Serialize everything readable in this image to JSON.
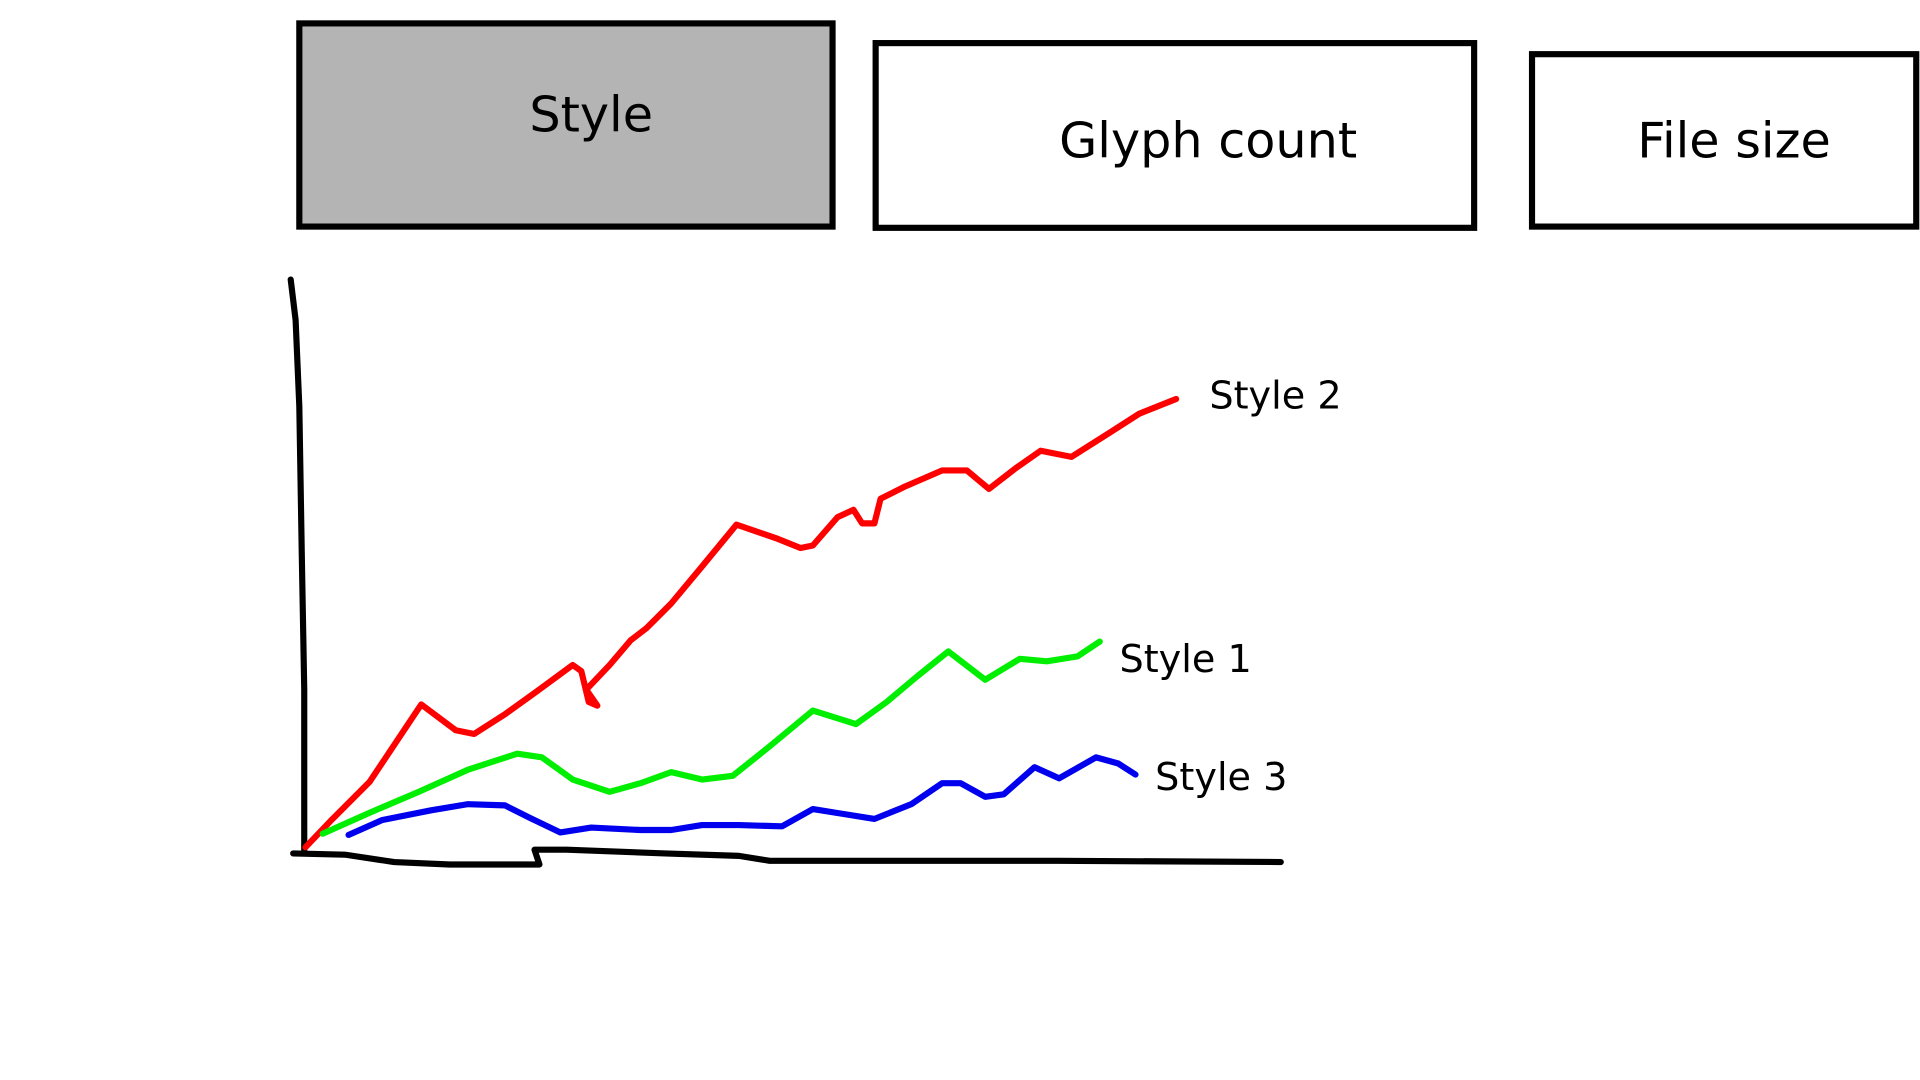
{
  "tabs": [
    {
      "label": "Style",
      "selected": true
    },
    {
      "label": "Glyph count",
      "selected": false
    },
    {
      "label": "File size",
      "selected": false
    }
  ],
  "chart": {
    "series_labels": [
      "Style 2",
      "Style 1",
      "Style 3"
    ]
  }
}
